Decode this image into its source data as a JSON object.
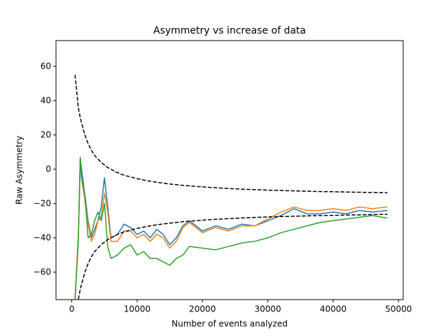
{
  "chart_data": {
    "type": "line",
    "title": "Asymmetry vs increase of data",
    "xlabel": "Number of events analyzed",
    "ylabel": "Raw Asymmetry",
    "x": [
      500,
      1000,
      1300,
      1500,
      2000,
      2500,
      3000,
      3500,
      4000,
      4500,
      5000,
      5500,
      6000,
      7000,
      8000,
      9000,
      10000,
      11000,
      12000,
      13000,
      14000,
      15000,
      16000,
      17000,
      18000,
      20000,
      22000,
      24000,
      26000,
      28000,
      30000,
      32000,
      34000,
      36000,
      38000,
      40000,
      42000,
      44000,
      46000,
      48300
    ],
    "series": [
      {
        "color": "#1f77b4",
        "values": [
          -76,
          -40,
          6,
          0,
          -15,
          -30,
          -40,
          -35,
          -30,
          -22,
          -5,
          -22,
          -40,
          -38,
          -32,
          -34,
          -38,
          -36,
          -40,
          -35,
          -38,
          -44,
          -40,
          -33,
          -30,
          -36,
          -33,
          -35,
          -32,
          -33,
          -30,
          -27,
          -23,
          -26,
          -26,
          -25,
          -26,
          -24,
          -25,
          -24
        ]
      },
      {
        "color": "#ff7f0e",
        "values": [
          -76,
          -38,
          5,
          -5,
          -18,
          -32,
          -42,
          -38,
          -30,
          -28,
          -14,
          -25,
          -42,
          -42,
          -36,
          -36,
          -40,
          -38,
          -42,
          -38,
          -40,
          -46,
          -42,
          -34,
          -31,
          -37,
          -34,
          -36,
          -33,
          -33,
          -29,
          -25,
          -22,
          -24,
          -24,
          -23,
          -24,
          -22,
          -23,
          -22
        ]
      },
      {
        "color": "#2ca02c",
        "values": [
          -76,
          -42,
          7,
          -5,
          -15,
          -40,
          -38,
          -30,
          -25,
          -30,
          -20,
          -45,
          -52,
          -50,
          -46,
          -44,
          -50,
          -48,
          -52,
          -52,
          -54,
          -56,
          -52,
          -50,
          -45,
          -46,
          -47,
          -45,
          -43,
          -42,
          -40,
          -37,
          -35,
          -33,
          -31,
          -30,
          -29,
          -28,
          -27,
          -28.5
        ]
      },
      {
        "color": "#000000",
        "style": "dashed",
        "values": [
          55,
          36,
          30,
          27,
          20,
          15,
          11,
          8,
          6,
          4,
          2.5,
          1,
          0,
          -2,
          -3.5,
          -4.5,
          -5.5,
          -6.3,
          -7,
          -7.6,
          -8.1,
          -8.6,
          -9,
          -9.4,
          -9.7,
          -10.3,
          -10.8,
          -11.2,
          -11.6,
          -11.9,
          -12.2,
          -12.4,
          -12.6,
          -12.8,
          -13,
          -13.1,
          -13.3,
          -13.4,
          -13.6,
          -13.7
        ]
      },
      {
        "color": "#000000",
        "style": "dashed",
        "values": [
          -95,
          -76,
          -70,
          -67,
          -60,
          -55,
          -51,
          -48,
          -46,
          -44,
          -42.5,
          -41,
          -40,
          -38,
          -36.5,
          -35.5,
          -34.5,
          -33.7,
          -33,
          -32.4,
          -31.9,
          -31.4,
          -31,
          -30.6,
          -30.3,
          -29.7,
          -29.2,
          -28.8,
          -28.4,
          -28.1,
          -27.8,
          -27.6,
          -27.4,
          -27.2,
          -27,
          -26.9,
          -26.7,
          -26.6,
          -26.4,
          -26.3
        ]
      }
    ],
    "xlim": [
      -2415,
      50715
    ],
    "ylim": [
      -76,
      75
    ],
    "xticks": [
      0,
      10000,
      20000,
      30000,
      40000,
      50000
    ],
    "yticks": [
      {
        "value": -60,
        "label": "−60"
      },
      {
        "value": -40,
        "label": "−40"
      },
      {
        "value": -20,
        "label": "−20"
      },
      0,
      20,
      40,
      60
    ],
    "grid": false
  }
}
